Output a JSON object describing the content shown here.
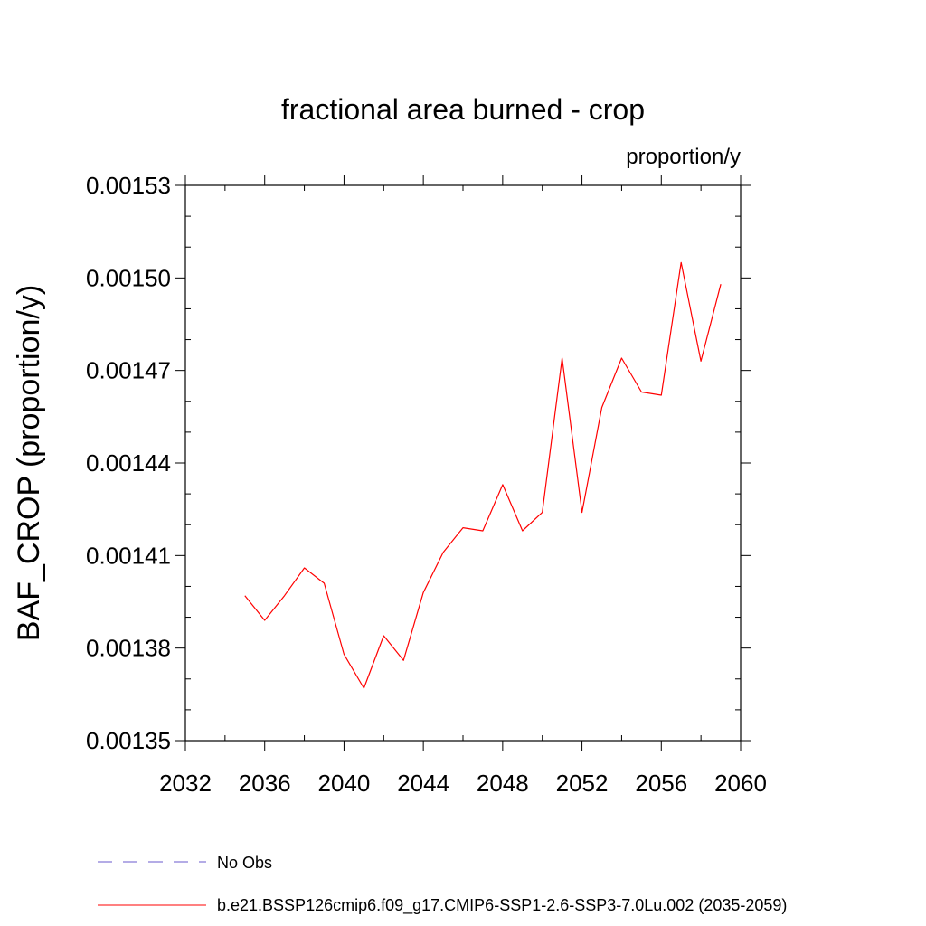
{
  "chart_data": {
    "type": "line",
    "title": "fractional area burned - crop",
    "units_label": "proportion/y",
    "ylabel": "BAF_CROP  (proportion/y)",
    "xlabel": "",
    "xlim": [
      2032,
      2060
    ],
    "ylim": [
      0.00135,
      0.00153
    ],
    "x_ticks": [
      "2032",
      "2036",
      "2040",
      "2044",
      "2048",
      "2052",
      "2056",
      "2060"
    ],
    "y_ticks": [
      "0.00135",
      "0.00138",
      "0.00141",
      "0.00144",
      "0.00147",
      "0.00150",
      "0.00153"
    ],
    "series": [
      {
        "name": "b.e21.BSSP126cmip6.f09_g17.CMIP6-SSP1-2.6-SSP3-7.0Lu.002 (2035-2059)",
        "color": "#ff0000",
        "style": "solid",
        "x": [
          2035,
          2036,
          2037,
          2038,
          2039,
          2040,
          2041,
          2042,
          2043,
          2044,
          2045,
          2046,
          2047,
          2048,
          2049,
          2050,
          2051,
          2052,
          2053,
          2054,
          2055,
          2056,
          2057,
          2058,
          2059
        ],
        "values": [
          0.001397,
          0.001389,
          0.001397,
          0.001406,
          0.001401,
          0.001378,
          0.001367,
          0.001384,
          0.001376,
          0.001398,
          0.001411,
          0.001419,
          0.001418,
          0.001433,
          0.001418,
          0.001424,
          0.001474,
          0.001424,
          0.001458,
          0.001474,
          0.001463,
          0.001462,
          0.001505,
          0.001473,
          0.001498
        ]
      }
    ],
    "legend": [
      {
        "label": "No Obs",
        "color": "#6a5acd",
        "style": "dashed"
      },
      {
        "label": "b.e21.BSSP126cmip6.f09_g17.CMIP6-SSP1-2.6-SSP3-7.0Lu.002 (2035-2059)",
        "color": "#ff0000",
        "style": "solid"
      }
    ]
  }
}
